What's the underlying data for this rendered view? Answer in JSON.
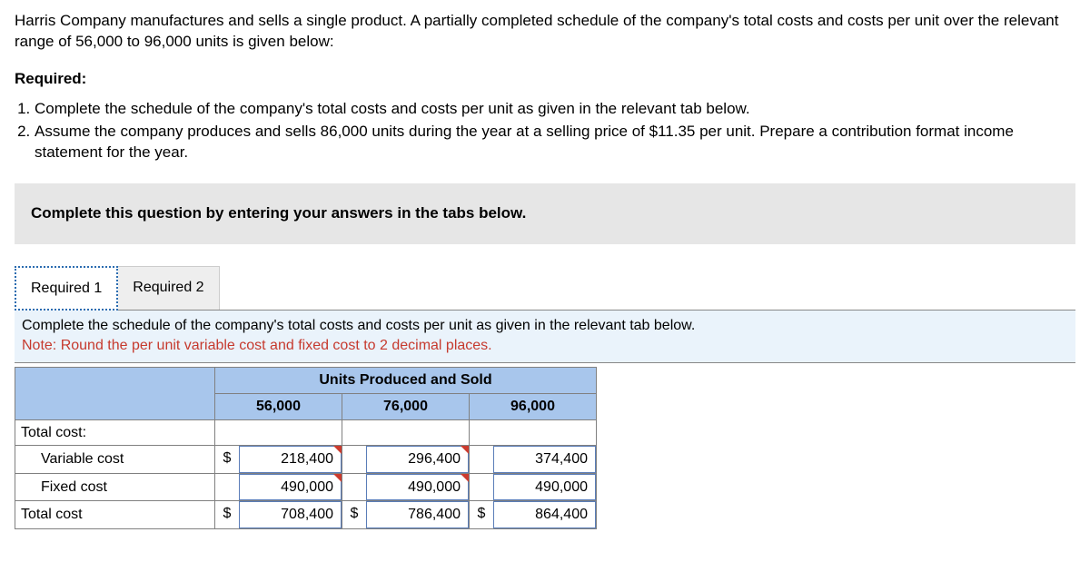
{
  "intro": "Harris Company manufactures and sells a single product. A partially completed schedule of the company's total costs and costs per unit over the relevant range of 56,000 to 96,000 units is given below:",
  "required_label": "Required:",
  "requirements": [
    "Complete the schedule of the company's total costs and costs per unit as given in the relevant tab below.",
    "Assume the company produces and sells 86,000 units during the year at a selling price of $11.35 per unit. Prepare a contribution format income statement for the year."
  ],
  "instruction_bar": "Complete this question by entering your answers in the tabs below.",
  "tabs": {
    "t1": "Required 1",
    "t2": "Required 2"
  },
  "panel": {
    "line1": "Complete the schedule of the company's total costs and costs per unit as given in the relevant tab below.",
    "note": "Note: Round the per unit variable cost and fixed cost to 2 decimal places."
  },
  "table": {
    "group_header": "Units Produced and Sold",
    "cols": {
      "c1": "56,000",
      "c2": "76,000",
      "c3": "96,000"
    },
    "rows": {
      "total_cost_header": "Total cost:",
      "variable": {
        "label": "Variable cost",
        "cur1": "$",
        "v1": "218,400",
        "cur2": "",
        "v2": "296,400",
        "cur3": "",
        "v3": "374,400"
      },
      "fixed": {
        "label": "Fixed cost",
        "cur1": "",
        "v1": "490,000",
        "cur2": "",
        "v2": "490,000",
        "cur3": "",
        "v3": "490,000"
      },
      "total": {
        "label": "Total cost",
        "cur1": "$",
        "v1": "708,400",
        "cur2": "$",
        "v2": "786,400",
        "cur3": "$",
        "v3": "864,400"
      }
    }
  },
  "style": {
    "header_bg": "#a8c6ec",
    "panel_bg": "#eaf3fb",
    "note_color": "#c63a2e",
    "tick_color": "#cc3b2e",
    "cell_border": "#808080",
    "input_border": "#5a7db8",
    "instruction_bg": "#e6e6e6",
    "tab_active_border": "#2b6cb0",
    "tab_inactive_bg": "#eeeeee"
  }
}
